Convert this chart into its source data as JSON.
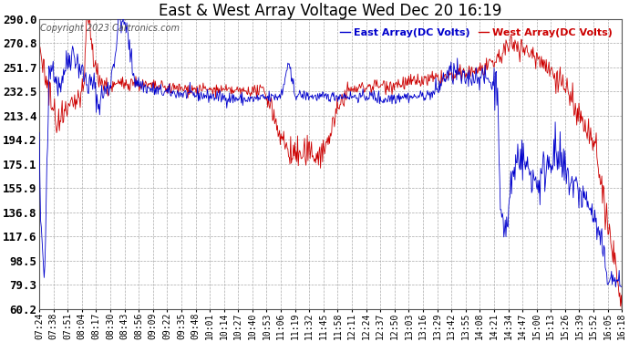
{
  "title": "East & West Array Voltage Wed Dec 20 16:19",
  "copyright": "Copyright 2023 Cartronics.com",
  "legend_east": "East Array(DC Volts)",
  "legend_west": "West Array(DC Volts)",
  "east_color": "#0000cc",
  "west_color": "#cc0000",
  "background_color": "#ffffff",
  "grid_color": "#aaaaaa",
  "ylim": [
    60.2,
    290.0
  ],
  "yticks": [
    60.2,
    79.3,
    98.5,
    117.6,
    136.8,
    155.9,
    175.1,
    194.2,
    213.4,
    232.5,
    251.7,
    270.8,
    290.0
  ],
  "x_labels": [
    "07:24",
    "07:38",
    "07:51",
    "08:04",
    "08:17",
    "08:30",
    "08:43",
    "08:56",
    "09:09",
    "09:22",
    "09:35",
    "09:48",
    "10:01",
    "10:14",
    "10:27",
    "10:40",
    "10:53",
    "11:06",
    "11:19",
    "11:32",
    "11:45",
    "11:58",
    "12:11",
    "12:24",
    "12:37",
    "12:50",
    "13:03",
    "13:16",
    "13:29",
    "13:42",
    "13:55",
    "14:08",
    "14:21",
    "14:34",
    "14:47",
    "15:00",
    "15:13",
    "15:26",
    "15:39",
    "15:52",
    "16:05",
    "16:18"
  ],
  "title_fontsize": 12,
  "axis_fontsize": 7,
  "ytick_fontsize": 9,
  "copyright_fontsize": 7,
  "legend_fontsize": 8
}
